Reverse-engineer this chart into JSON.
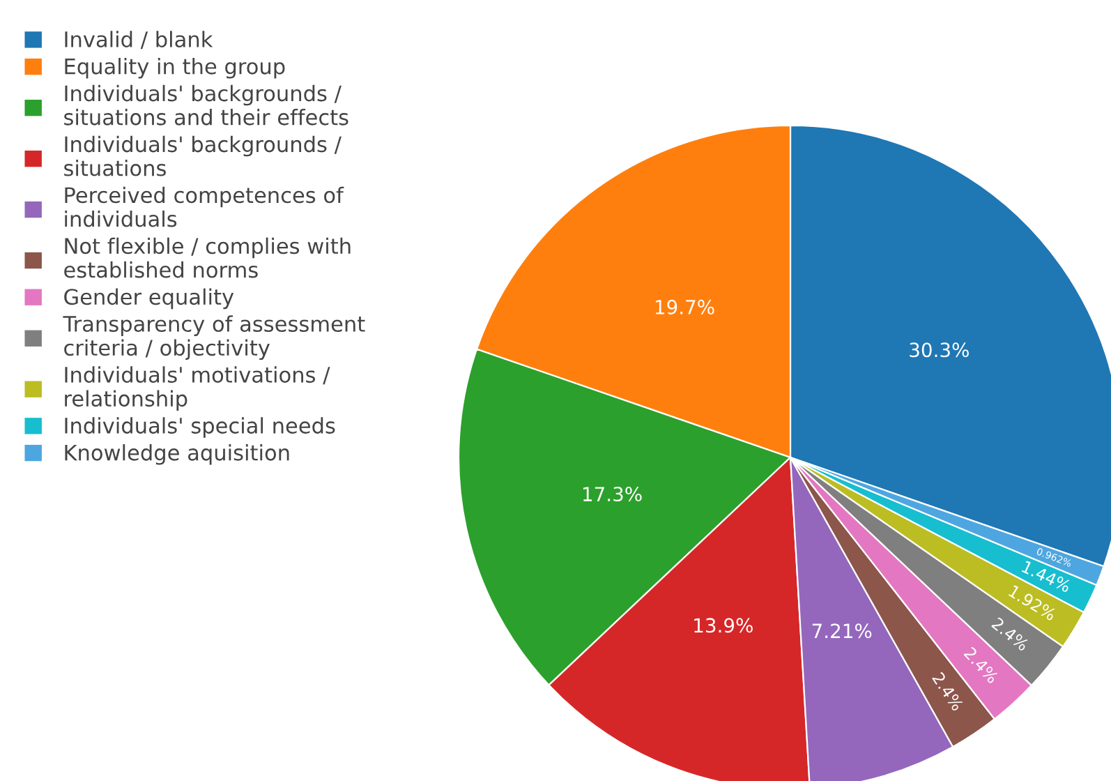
{
  "chart_data": {
    "type": "pie",
    "categories": [
      "Invalid / blank",
      "Equality in the group",
      "Individuals' backgrounds / situations and their effects",
      "Individuals' backgrounds / situations",
      "Perceived competences of individuals",
      "Not flexible / complies with established norms",
      "Gender equality",
      "Transparency of assessment criteria / objectivity",
      "Individuals' motivations / relationship",
      "Individuals' special needs",
      "Knowledge aquisition"
    ],
    "values": [
      30.3,
      19.7,
      17.3,
      13.9,
      7.21,
      2.4,
      2.4,
      2.4,
      1.92,
      1.44,
      0.962
    ],
    "value_labels": [
      "30.3%",
      "19.7%",
      "17.3%",
      "13.9%",
      "7.21%",
      "2.4%",
      "2.4%",
      "2.4%",
      "1.92%",
      "1.44%",
      "0.962%"
    ],
    "colors": [
      "#1f77b4",
      "#ff7f0e",
      "#2ca02c",
      "#d62728",
      "#9467bd",
      "#8c564b",
      "#e377c2",
      "#7f7f7f",
      "#bcbd22",
      "#17becf",
      "#4ea6e0"
    ],
    "legend": "top left"
  }
}
